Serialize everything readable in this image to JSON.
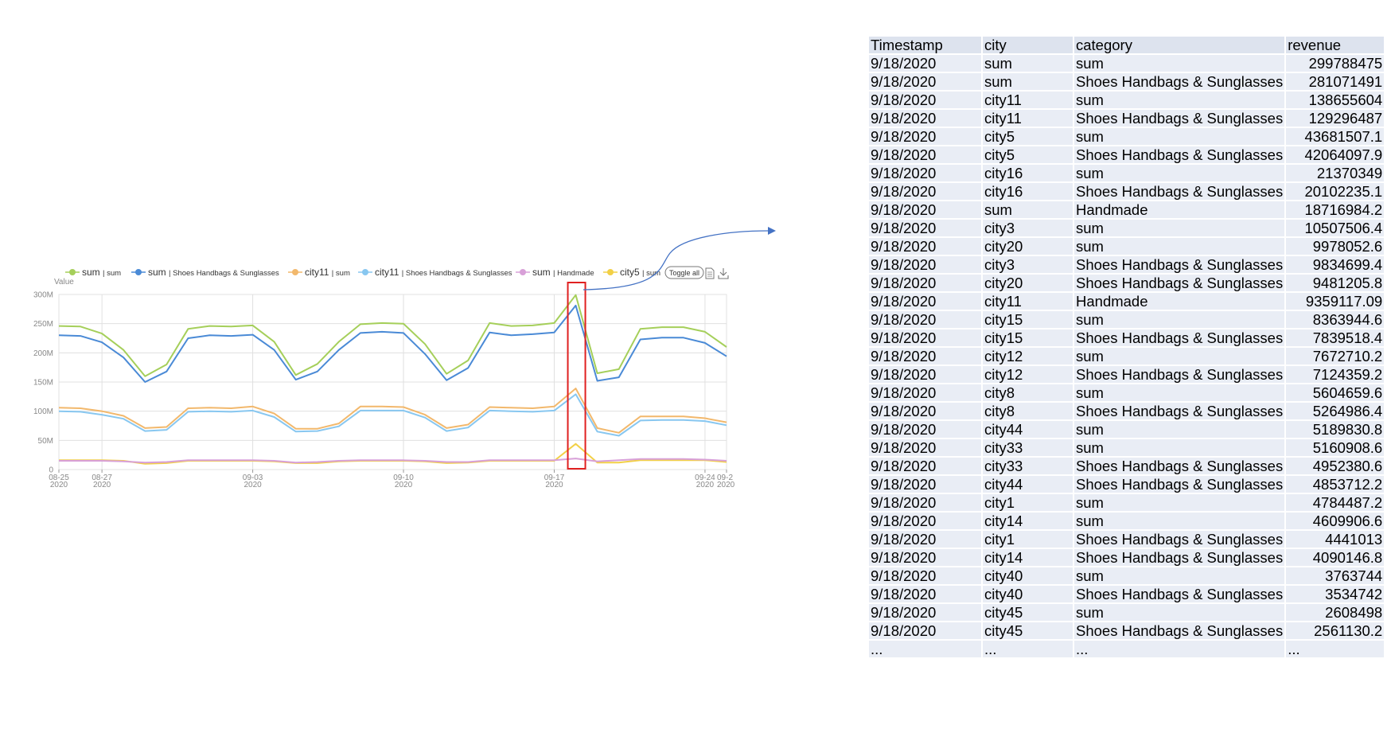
{
  "chart_data": {
    "type": "line",
    "ylabel": "Value",
    "ylim": [
      0,
      300000000
    ],
    "y_ticks": [
      "0",
      "50M",
      "100M",
      "150M",
      "200M",
      "250M",
      "300M"
    ],
    "x": [
      "08-25",
      "08-26",
      "08-27",
      "08-28",
      "08-29",
      "08-30",
      "08-31",
      "09-01",
      "09-02",
      "09-03",
      "09-04",
      "09-05",
      "09-06",
      "09-07",
      "09-08",
      "09-09",
      "09-10",
      "09-11",
      "09-12",
      "09-13",
      "09-14",
      "09-15",
      "09-16",
      "09-17",
      "09-18",
      "09-19",
      "09-20",
      "09-21",
      "09-22",
      "09-23",
      "09-24",
      "09-25"
    ],
    "x_tick_labels": [
      {
        "day": "08-25",
        "year": "2020"
      },
      {
        "day": "08-27",
        "year": "2020"
      },
      {
        "day": "09-03",
        "year": "2020"
      },
      {
        "day": "09-10",
        "year": "2020"
      },
      {
        "day": "09-17",
        "year": "2020"
      },
      {
        "day": "09-24",
        "year": "2020"
      },
      {
        "day": "09-2",
        "year": "2020"
      }
    ],
    "series": [
      {
        "name": "sum | sum",
        "color": "#a5cf5a",
        "values": [
          246,
          245,
          233,
          205,
          160,
          180,
          241,
          246,
          245,
          247,
          219,
          162,
          181,
          219,
          249,
          251,
          250,
          215,
          164,
          187,
          251,
          246,
          247,
          251,
          299,
          165,
          172,
          241,
          244,
          244,
          236,
          210
        ]
      },
      {
        "name": "sum | Shoes Handbags & Sunglasses",
        "color": "#4a8ad6",
        "values": [
          230,
          229,
          218,
          192,
          150,
          168,
          225,
          230,
          229,
          231,
          205,
          154,
          168,
          205,
          234,
          236,
          234,
          198,
          153,
          174,
          235,
          230,
          232,
          235,
          281,
          152,
          158,
          223,
          226,
          226,
          217,
          194
        ]
      },
      {
        "name": "city11 | sum",
        "color": "#f2b86c",
        "values": [
          106,
          105,
          100,
          92,
          71,
          73,
          105,
          106,
          105,
          108,
          96,
          70,
          70,
          79,
          108,
          108,
          107,
          94,
          71,
          77,
          107,
          106,
          105,
          108,
          139,
          71,
          63,
          91,
          91,
          91,
          88,
          81
        ]
      },
      {
        "name": "city11 | Shoes Handbags & Sunglasses",
        "color": "#88c7f0",
        "values": [
          100,
          99,
          94,
          87,
          66,
          68,
          99,
          100,
          99,
          101,
          90,
          65,
          66,
          74,
          101,
          101,
          101,
          89,
          66,
          72,
          101,
          100,
          99,
          101,
          129,
          65,
          58,
          84,
          85,
          85,
          83,
          76
        ]
      },
      {
        "name": "sum | Handmade",
        "color": "#d8a0d8",
        "values": [
          15,
          15,
          15,
          14,
          12,
          13,
          16,
          16,
          16,
          16,
          15,
          12,
          13,
          15,
          16,
          16,
          16,
          15,
          13,
          13,
          16,
          16,
          16,
          16,
          19,
          14,
          16,
          18,
          18,
          18,
          17,
          15
        ]
      },
      {
        "name": "city5 | sum",
        "color": "#f2d046",
        "values": [
          16,
          16,
          16,
          15,
          10,
          11,
          15,
          15,
          15,
          15,
          14,
          11,
          11,
          14,
          15,
          15,
          15,
          14,
          11,
          12,
          15,
          15,
          15,
          15,
          44,
          12,
          12,
          16,
          16,
          16,
          16,
          13
        ]
      }
    ],
    "legend_extra": "Toggle all",
    "highlighted_x": "09-18"
  },
  "table": {
    "headers": [
      "Timestamp",
      "city",
      "category",
      "revenue"
    ],
    "rows": [
      [
        "9/18/2020",
        "sum",
        "sum",
        "299788475"
      ],
      [
        "9/18/2020",
        "sum",
        "Shoes Handbags & Sunglasses",
        "281071491"
      ],
      [
        "9/18/2020",
        "city11",
        "sum",
        "138655604"
      ],
      [
        "9/18/2020",
        "city11",
        "Shoes Handbags & Sunglasses",
        "129296487"
      ],
      [
        "9/18/2020",
        "city5",
        "sum",
        "43681507.1"
      ],
      [
        "9/18/2020",
        "city5",
        "Shoes Handbags & Sunglasses",
        "42064097.9"
      ],
      [
        "9/18/2020",
        "city16",
        "sum",
        "21370349"
      ],
      [
        "9/18/2020",
        "city16",
        "Shoes Handbags & Sunglasses",
        "20102235.1"
      ],
      [
        "9/18/2020",
        "sum",
        "Handmade",
        "18716984.2"
      ],
      [
        "9/18/2020",
        "city3",
        "sum",
        "10507506.4"
      ],
      [
        "9/18/2020",
        "city20",
        "sum",
        "9978052.6"
      ],
      [
        "9/18/2020",
        "city3",
        "Shoes Handbags & Sunglasses",
        "9834699.4"
      ],
      [
        "9/18/2020",
        "city20",
        "Shoes Handbags & Sunglasses",
        "9481205.8"
      ],
      [
        "9/18/2020",
        "city11",
        "Handmade",
        "9359117.09"
      ],
      [
        "9/18/2020",
        "city15",
        "sum",
        "8363944.6"
      ],
      [
        "9/18/2020",
        "city15",
        "Shoes Handbags & Sunglasses",
        "7839518.4"
      ],
      [
        "9/18/2020",
        "city12",
        "sum",
        "7672710.2"
      ],
      [
        "9/18/2020",
        "city12",
        "Shoes Handbags & Sunglasses",
        "7124359.2"
      ],
      [
        "9/18/2020",
        "city8",
        "sum",
        "5604659.6"
      ],
      [
        "9/18/2020",
        "city8",
        "Shoes Handbags & Sunglasses",
        "5264986.4"
      ],
      [
        "9/18/2020",
        "city44",
        "sum",
        "5189830.8"
      ],
      [
        "9/18/2020",
        "city33",
        "sum",
        "5160908.6"
      ],
      [
        "9/18/2020",
        "city33",
        "Shoes Handbags & Sunglasses",
        "4952380.6"
      ],
      [
        "9/18/2020",
        "city44",
        "Shoes Handbags & Sunglasses",
        "4853712.2"
      ],
      [
        "9/18/2020",
        "city1",
        "sum",
        "4784487.2"
      ],
      [
        "9/18/2020",
        "city14",
        "sum",
        "4609906.6"
      ],
      [
        "9/18/2020",
        "city1",
        "Shoes Handbags & Sunglasses",
        "4441013"
      ],
      [
        "9/18/2020",
        "city14",
        "Shoes Handbags & Sunglasses",
        "4090146.8"
      ],
      [
        "9/18/2020",
        "city40",
        "sum",
        "3763744"
      ],
      [
        "9/18/2020",
        "city40",
        "Shoes Handbags & Sunglasses",
        "3534742"
      ],
      [
        "9/18/2020",
        "city45",
        "sum",
        "2608498"
      ],
      [
        "9/18/2020",
        "city45",
        "Shoes Handbags & Sunglasses",
        "2561130.2"
      ],
      [
        "...",
        "...",
        "...",
        "..."
      ]
    ]
  },
  "icons": {
    "data_view": "document-icon",
    "save": "download-icon"
  },
  "colors": {
    "highlight_box": "#e02020",
    "arrow": "#4472c4",
    "grid": "#e0e0e0",
    "table_cell": "#e9edf5"
  }
}
